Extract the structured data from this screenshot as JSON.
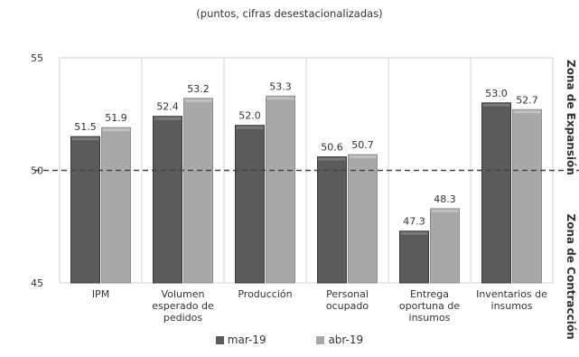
{
  "chart_data": {
    "type": "bar",
    "subtitle": "(puntos, cifras desestacionalizadas)",
    "categories": [
      [
        "IPM"
      ],
      [
        "Volumen",
        "esperado de",
        "pedidos"
      ],
      [
        "Producción"
      ],
      [
        "Personal",
        "ocupado"
      ],
      [
        "Entrega",
        "oportuna de",
        "insumos"
      ],
      [
        "Inventarios de",
        "insumos"
      ]
    ],
    "series": [
      {
        "name": "mar-19",
        "color": "#5a5a5a",
        "values": [
          51.5,
          52.4,
          52.0,
          50.6,
          47.3,
          53.0
        ]
      },
      {
        "name": "abr-19",
        "color": "#a8a8a8",
        "values": [
          51.9,
          53.2,
          53.3,
          50.7,
          48.3,
          52.7
        ]
      }
    ],
    "ylim": [
      45,
      55
    ],
    "yticks": [
      "45",
      "50",
      "55"
    ],
    "threshold": 50,
    "zone_labels": {
      "upper": "Zona de Expansión",
      "lower": "Zona de Contracción"
    },
    "legend_position": "bottom"
  }
}
